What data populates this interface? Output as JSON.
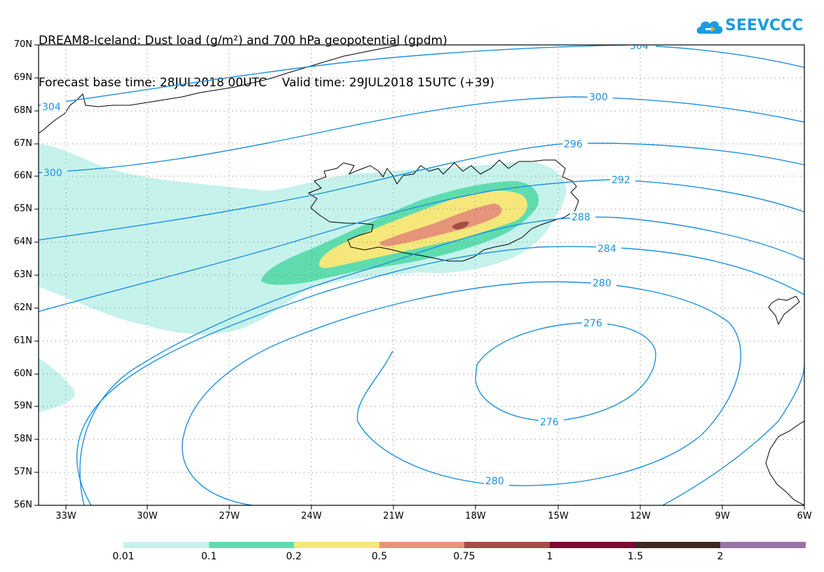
{
  "title_line1": "DREAM8-Iceland: Dust load (g/m²) and 700 hPa geopotential (gpdm)",
  "title_line2": "Forecast base time: 28JUL2018 00UTC    Valid time: 29JUL2018 15UTC (+39)",
  "logo_text": "SEEVCCC",
  "logo_icon": "cloud-icon",
  "lat_labels": [
    "70N",
    "69N",
    "68N",
    "67N",
    "66N",
    "65N",
    "64N",
    "63N",
    "62N",
    "61N",
    "60N",
    "59N",
    "58N",
    "57N",
    "56N"
  ],
  "lon_labels": [
    "33W",
    "30W",
    "27W",
    "24W",
    "21W",
    "18W",
    "15W",
    "12W",
    "9W",
    "6W"
  ],
  "contour_labels": [
    "304",
    "304",
    "300",
    "300",
    "296",
    "292",
    "288",
    "284",
    "280",
    "276",
    "276",
    "280"
  ],
  "colorbar": {
    "labels": [
      "0.01",
      "0.1",
      "0.2",
      "0.5",
      "0.75",
      "1",
      "1.5",
      "2"
    ],
    "colors": [
      "#c6f2ec",
      "#5fdcae",
      "#f5e77a",
      "#e6947a",
      "#a34e44",
      "#7a0a30",
      "#3e2a20",
      "#9b72a8"
    ]
  },
  "colors": {
    "contour": "#1e90e0",
    "contour_label": "#1e90e0",
    "coast": "#000000"
  }
}
